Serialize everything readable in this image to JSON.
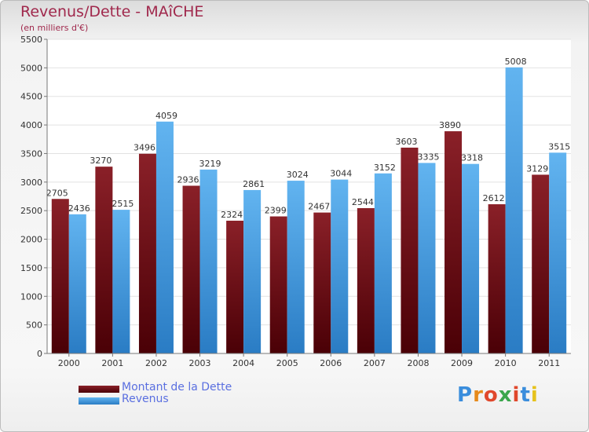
{
  "chart_data": {
    "type": "bar",
    "title": "Revenus/Dette - MAîCHE",
    "subtitle": "(en milliers d'€)",
    "categories": [
      "2000",
      "2001",
      "2002",
      "2003",
      "2004",
      "2005",
      "2006",
      "2007",
      "2008",
      "2009",
      "2010",
      "2011"
    ],
    "series": [
      {
        "name": "Montant de la Dette",
        "values": [
          2705,
          3270,
          3496,
          2936,
          2324,
          2399,
          2467,
          2544,
          3603,
          3890,
          2612,
          3129
        ],
        "color": "#7a1620"
      },
      {
        "name": "Revenus",
        "values": [
          2436,
          2515,
          4059,
          3219,
          2861,
          3024,
          3044,
          3152,
          3335,
          3318,
          5008,
          3515
        ],
        "color": "#4a9fe0"
      }
    ],
    "ylim": [
      0,
      5500
    ],
    "yticks": [
      0,
      500,
      1000,
      1500,
      2000,
      2500,
      3000,
      3500,
      4000,
      4500,
      5000,
      5500
    ],
    "grid": true,
    "legend_position": "bottom-left"
  },
  "logo": {
    "text": "Proxiti",
    "colors": [
      "#3a8ddc",
      "#e68a1c",
      "#e0482c",
      "#3aa64c",
      "#e0482c",
      "#3a8ddc",
      "#e6c21c"
    ]
  }
}
